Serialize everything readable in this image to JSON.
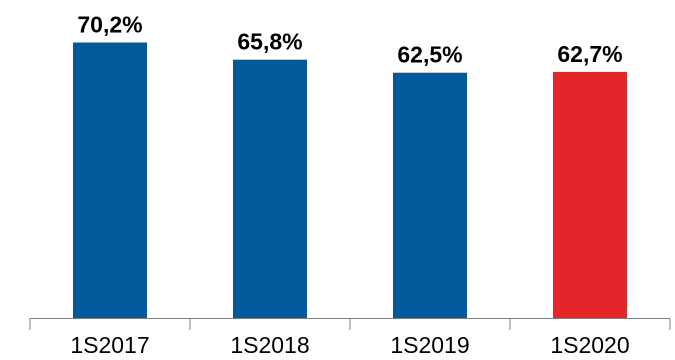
{
  "chart_data": {
    "type": "bar",
    "title": "",
    "xlabel": "",
    "ylabel": "",
    "categories": [
      "1S2017",
      "1S2018",
      "1S2019",
      "1S2020"
    ],
    "values": [
      70.2,
      65.8,
      62.5,
      62.7
    ],
    "data_labels": [
      "70,2%",
      "65,8%",
      "62,5%",
      "62,7%"
    ],
    "colors": [
      "#005a9c",
      "#005a9c",
      "#005a9c",
      "#e3262a"
    ],
    "ylim": [
      0,
      80
    ],
    "grid": false,
    "legend": "none"
  },
  "colors": {
    "primary_bar": "#005a9c",
    "highlight_bar": "#e3262a",
    "axis": "#808080"
  }
}
